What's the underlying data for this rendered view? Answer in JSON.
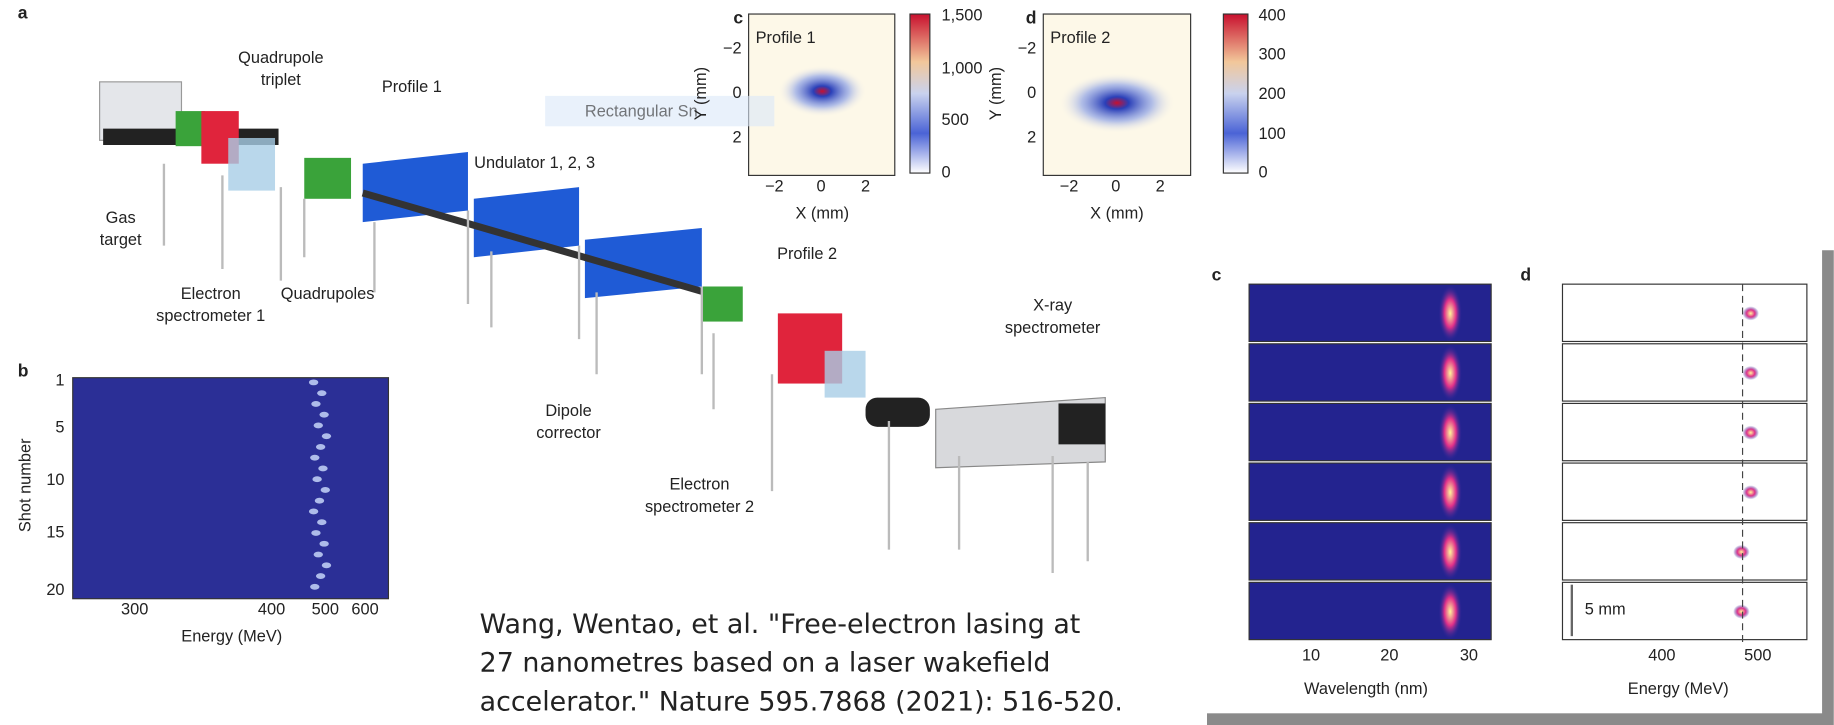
{
  "figure_left": {
    "panel_labels": [
      "a",
      "b",
      "c",
      "d"
    ],
    "beamline_labels": [
      [
        "Quadrupole",
        "triplet"
      ],
      [
        "Profile 1"
      ],
      [
        "Undulator 1, 2, 3"
      ],
      [
        "Gas",
        "target"
      ],
      [
        "Electron",
        "spectrometer 1"
      ],
      [
        "Quadrupoles"
      ],
      [
        "Profile 2"
      ],
      [
        "Dipole",
        "corrector"
      ],
      [
        "X-ray",
        "spectrometer"
      ],
      [
        "Electron",
        "spectrometer 2"
      ]
    ],
    "profile_c": {
      "title": "Profile 1",
      "xlabel": "X (mm)",
      "ylabel": "Y (mm)",
      "xticks": [
        "−2",
        "0",
        "2"
      ],
      "yticks": [
        "−2",
        "0",
        "2"
      ],
      "colorbar_ticks": [
        "1,500",
        "1,000",
        "500",
        "0"
      ]
    },
    "profile_d": {
      "title": "Profile 2",
      "xlabel": "X (mm)",
      "ylabel": "Y (mm)",
      "xticks": [
        "−2",
        "0",
        "2"
      ],
      "yticks": [
        "−2",
        "0",
        "2"
      ],
      "colorbar_ticks": [
        "400",
        "300",
        "200",
        "100",
        "0"
      ]
    },
    "panel_b": {
      "xlabel": "Energy (MeV)",
      "ylabel": "Shot number",
      "xticks": [
        "300",
        "400",
        "500",
        "600"
      ],
      "yticks": [
        "1",
        "5",
        "10",
        "15",
        "20"
      ]
    }
  },
  "figure_right": {
    "panel_labels": [
      "c",
      "d"
    ],
    "panel_c": {
      "xlabel": "Wavelength (nm)",
      "xticks": [
        "10",
        "20",
        "30"
      ]
    },
    "panel_d": {
      "xlabel": "Energy (MeV)",
      "xticks": [
        "400",
        "500"
      ],
      "scale_label": "5 mm"
    }
  },
  "overlay_label": "Rectangular Sn",
  "citation": [
    "Wang, Wentao, et al. \"Free-electron lasing at",
    "27 nanometres based on a laser wakefield",
    "accelerator.\" Nature 595.7868 (2021): 516-520."
  ]
}
